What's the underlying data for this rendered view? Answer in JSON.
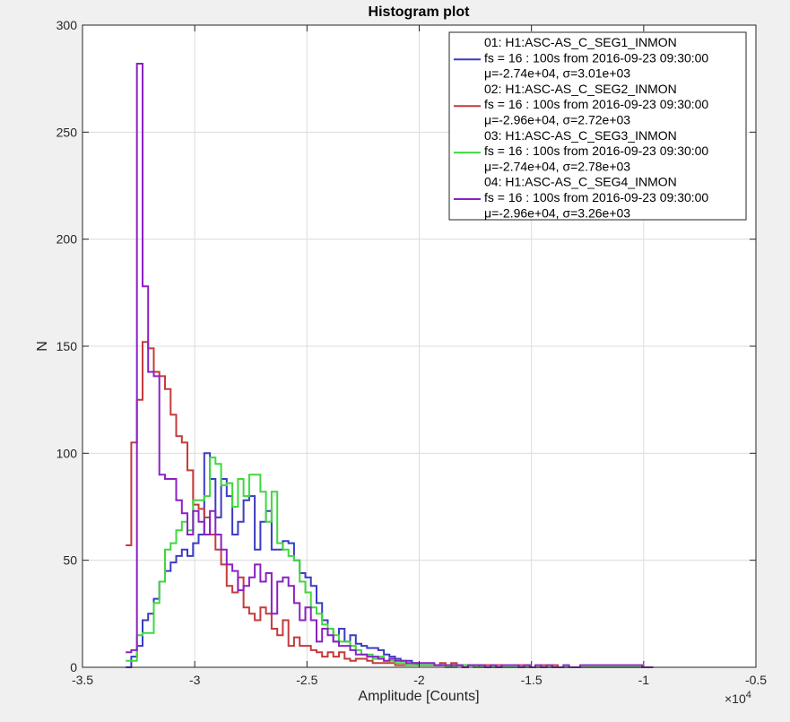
{
  "chart_data": {
    "type": "histogram-stairs",
    "title": "Histogram plot",
    "xlabel": "Amplitude [Counts]",
    "ylabel": "N",
    "x_exponent_label": "×10",
    "x_exponent_power": "4",
    "xlim": [
      -3.5,
      -0.5
    ],
    "ylim": [
      0,
      300
    ],
    "xticks": [
      -3.5,
      -3,
      -2.5,
      -2,
      -1.5,
      -1,
      -0.5
    ],
    "xtick_labels": [
      "-3.5",
      "-3",
      "-2.5",
      "-2",
      "-1.5",
      "-1",
      "-0.5"
    ],
    "yticks": [
      0,
      50,
      100,
      150,
      200,
      250,
      300
    ],
    "ytick_labels": [
      "0",
      "50",
      "100",
      "150",
      "200",
      "250",
      "300"
    ],
    "grid": true,
    "legend_position": "top-right",
    "series": [
      {
        "color": "#3b3bc4",
        "legend_lines": [
          "01: H1:ASC-AS_C_SEG1_INMON",
          "fs = 16 : 100s from 2016-09-23 09:30:00",
          "μ=-2.74e+04, σ=3.01e+03"
        ],
        "x": [
          -3.295,
          -3.27,
          -3.245,
          -3.22,
          -3.195,
          -3.17,
          -3.145,
          -3.12,
          -3.095,
          -3.07,
          -3.045,
          -3.02,
          -2.995,
          -2.97,
          -2.945,
          -2.92,
          -2.895,
          -2.87,
          -2.845,
          -2.82,
          -2.795,
          -2.77,
          -2.745,
          -2.72,
          -2.695,
          -2.67,
          -2.645,
          -2.62,
          -2.595,
          -2.57,
          -2.545,
          -2.52,
          -2.495,
          -2.47,
          -2.445,
          -2.42,
          -2.395,
          -2.37,
          -2.345,
          -2.32,
          -2.295,
          -2.27,
          -2.245,
          -2.22,
          -2.195,
          -2.17,
          -2.145,
          -2.12,
          -2.095,
          -2.07,
          -2.045,
          -2.02,
          -1.995,
          -1.97,
          -1.945,
          -1.92,
          -1.895,
          -1.87,
          -1.845,
          -1.82,
          -1.795,
          -1.77,
          -1.745,
          -1.72,
          -1.695,
          -1.67,
          -1.645,
          -1.62,
          -1.595,
          -1.57,
          -1.545,
          -1.52,
          -1.495,
          -1.47,
          -1.445,
          -1.42,
          -1.395,
          -1.37,
          -1.345,
          -1.32,
          -1.295,
          -1.27,
          -1.245,
          -1.22,
          -1.195,
          -1.17,
          -1.145,
          -1.12,
          -1.095,
          -1.07,
          -1.045,
          -1.02,
          -0.995,
          -0.97
        ],
        "values": [
          0,
          5,
          10,
          22,
          25,
          32,
          40,
          45,
          49,
          52,
          55,
          52,
          58,
          62,
          100,
          88,
          70,
          88,
          80,
          62,
          68,
          78,
          80,
          55,
          68,
          73,
          55,
          55,
          59,
          58,
          50,
          44,
          42,
          38,
          30,
          22,
          18,
          12,
          18,
          12,
          15,
          11,
          10,
          9,
          9,
          8,
          6,
          5,
          4,
          3,
          3,
          2,
          1,
          1,
          1,
          1,
          1,
          0,
          1,
          1,
          0,
          1,
          0,
          1,
          0,
          0,
          0,
          0,
          0,
          0,
          0,
          0,
          0,
          0,
          0,
          0,
          0,
          0,
          0,
          0,
          0,
          0,
          0,
          0,
          0,
          0,
          0,
          0,
          0,
          0,
          0,
          0,
          0,
          0
        ]
      },
      {
        "color": "#c43b3b",
        "legend_lines": [
          "02: H1:ASC-AS_C_SEG2_INMON",
          "fs = 16 : 100s from 2016-09-23 09:30:00",
          "μ=-2.96e+04, σ=2.72e+03"
        ],
        "x": [
          -3.295,
          -3.27,
          -3.245,
          -3.22,
          -3.195,
          -3.17,
          -3.145,
          -3.12,
          -3.095,
          -3.07,
          -3.045,
          -3.02,
          -2.995,
          -2.97,
          -2.945,
          -2.92,
          -2.895,
          -2.87,
          -2.845,
          -2.82,
          -2.795,
          -2.77,
          -2.745,
          -2.72,
          -2.695,
          -2.67,
          -2.645,
          -2.62,
          -2.595,
          -2.57,
          -2.545,
          -2.52,
          -2.495,
          -2.47,
          -2.445,
          -2.42,
          -2.395,
          -2.37,
          -2.345,
          -2.32,
          -2.295,
          -2.27,
          -2.245,
          -2.22,
          -2.195,
          -2.17,
          -2.145,
          -2.12,
          -2.095,
          -2.07,
          -2.045,
          -2.02,
          -1.995,
          -1.97,
          -1.945,
          -1.92,
          -1.895,
          -1.87,
          -1.845,
          -1.82,
          -1.795,
          -1.77,
          -1.745,
          -1.72,
          -1.695,
          -1.67,
          -1.645,
          -1.62,
          -1.595,
          -1.57,
          -1.545,
          -1.52,
          -1.495,
          -1.47,
          -1.445,
          -1.42,
          -1.395,
          -1.37,
          -1.345,
          -1.32,
          -1.295,
          -1.27,
          -1.245,
          -1.22,
          -1.195,
          -1.17,
          -1.145,
          -1.12,
          -1.095,
          -1.07,
          -1.045,
          -1.02,
          -0.995,
          -0.97
        ],
        "values": [
          57,
          105,
          125,
          152,
          149,
          138,
          136,
          130,
          118,
          108,
          105,
          92,
          76,
          74,
          70,
          62,
          55,
          48,
          38,
          35,
          42,
          28,
          25,
          22,
          28,
          25,
          18,
          15,
          22,
          10,
          14,
          10,
          10,
          8,
          7,
          5,
          7,
          5,
          7,
          4,
          3,
          4,
          4,
          3,
          2,
          2,
          2,
          2,
          1,
          1,
          1,
          1,
          1,
          1,
          1,
          1,
          2,
          1,
          2,
          1,
          1,
          1,
          1,
          0,
          1,
          1,
          1,
          0,
          0,
          0,
          1,
          1,
          0,
          0,
          1,
          0,
          1,
          0,
          0,
          0,
          0,
          0,
          0,
          0,
          0,
          0,
          0,
          0,
          0,
          0,
          0,
          0,
          0,
          0
        ]
      },
      {
        "color": "#3fd83f",
        "legend_lines": [
          "03: H1:ASC-AS_C_SEG3_INMON",
          "fs = 16 : 100s from 2016-09-23 09:30:00",
          "μ=-2.74e+04, σ=2.78e+03"
        ],
        "x": [
          -3.295,
          -3.27,
          -3.245,
          -3.22,
          -3.195,
          -3.17,
          -3.145,
          -3.12,
          -3.095,
          -3.07,
          -3.045,
          -3.02,
          -2.995,
          -2.97,
          -2.945,
          -2.92,
          -2.895,
          -2.87,
          -2.845,
          -2.82,
          -2.795,
          -2.77,
          -2.745,
          -2.72,
          -2.695,
          -2.67,
          -2.645,
          -2.62,
          -2.595,
          -2.57,
          -2.545,
          -2.52,
          -2.495,
          -2.47,
          -2.445,
          -2.42,
          -2.395,
          -2.37,
          -2.345,
          -2.32,
          -2.295,
          -2.27,
          -2.245,
          -2.22,
          -2.195,
          -2.17,
          -2.145,
          -2.12,
          -2.095,
          -2.07,
          -2.045,
          -2.02,
          -1.995,
          -1.97,
          -1.945,
          -1.92,
          -1.895,
          -1.87,
          -1.845,
          -1.82,
          -1.795,
          -1.77,
          -1.745,
          -1.72,
          -1.695,
          -1.67,
          -1.645,
          -1.62,
          -1.595,
          -1.57,
          -1.545,
          -1.52,
          -1.495,
          -1.47,
          -1.445,
          -1.42,
          -1.395,
          -1.37,
          -1.345,
          -1.32,
          -1.295,
          -1.27,
          -1.245,
          -1.22,
          -1.195,
          -1.17,
          -1.145,
          -1.12,
          -1.095,
          -1.07,
          -1.045,
          -1.02,
          -0.995,
          -0.97
        ],
        "values": [
          3,
          3,
          15,
          16,
          16,
          30,
          40,
          55,
          58,
          64,
          68,
          64,
          78,
          78,
          80,
          98,
          95,
          85,
          86,
          75,
          88,
          80,
          90,
          90,
          82,
          68,
          82,
          58,
          55,
          52,
          50,
          40,
          35,
          28,
          25,
          20,
          18,
          15,
          12,
          12,
          10,
          8,
          6,
          6,
          4,
          5,
          3,
          3,
          2,
          2,
          1,
          1,
          1,
          1,
          1,
          1,
          1,
          0,
          0,
          1,
          1,
          1,
          0,
          0,
          0,
          0,
          0,
          0,
          0,
          0,
          0,
          0,
          0,
          0,
          0,
          0,
          0,
          0,
          0,
          0,
          0,
          0,
          0,
          0,
          0,
          0,
          0,
          0,
          0,
          0,
          0,
          0,
          0,
          0
        ]
      },
      {
        "color": "#8a22c4",
        "legend_lines": [
          "04: H1:ASC-AS_C_SEG4_INMON",
          "fs = 16 : 100s from 2016-09-23 09:30:00",
          "μ=-2.96e+04, σ=3.26e+03"
        ],
        "x": [
          -3.295,
          -3.27,
          -3.245,
          -3.22,
          -3.195,
          -3.17,
          -3.145,
          -3.12,
          -3.095,
          -3.07,
          -3.045,
          -3.02,
          -2.995,
          -2.97,
          -2.945,
          -2.92,
          -2.895,
          -2.87,
          -2.845,
          -2.82,
          -2.795,
          -2.77,
          -2.745,
          -2.72,
          -2.695,
          -2.67,
          -2.645,
          -2.62,
          -2.595,
          -2.57,
          -2.545,
          -2.52,
          -2.495,
          -2.47,
          -2.445,
          -2.42,
          -2.395,
          -2.37,
          -2.345,
          -2.32,
          -2.295,
          -2.27,
          -2.245,
          -2.22,
          -2.195,
          -2.17,
          -2.145,
          -2.12,
          -2.095,
          -2.07,
          -2.045,
          -2.02,
          -1.995,
          -1.97,
          -1.945,
          -1.92,
          -1.895,
          -1.87,
          -1.845,
          -1.82,
          -1.795,
          -1.77,
          -1.745,
          -1.72,
          -1.695,
          -1.67,
          -1.645,
          -1.62,
          -1.595,
          -1.57,
          -1.545,
          -1.52,
          -1.495,
          -1.47,
          -1.445,
          -1.42,
          -1.395,
          -1.37,
          -1.345,
          -1.32,
          -1.295,
          -1.27,
          -1.245,
          -1.22,
          -1.195,
          -1.17,
          -1.145,
          -1.12,
          -1.095,
          -1.07,
          -1.045,
          -1.02,
          -0.995,
          -0.97
        ],
        "values": [
          7,
          8,
          282,
          178,
          138,
          136,
          90,
          88,
          88,
          78,
          72,
          62,
          73,
          68,
          62,
          73,
          62,
          55,
          48,
          45,
          36,
          38,
          42,
          48,
          40,
          44,
          25,
          40,
          42,
          38,
          30,
          22,
          28,
          22,
          12,
          18,
          15,
          12,
          10,
          10,
          8,
          6,
          6,
          5,
          5,
          4,
          3,
          4,
          3,
          3,
          2,
          2,
          2,
          2,
          2,
          1,
          1,
          1,
          1,
          1,
          0,
          1,
          1,
          1,
          0,
          1,
          0,
          1,
          1,
          1,
          0,
          1,
          0,
          1,
          0,
          1,
          0,
          0,
          1,
          0,
          0,
          1,
          1,
          1,
          1,
          1,
          1,
          1,
          1,
          1,
          1,
          1,
          0,
          0
        ]
      }
    ]
  }
}
